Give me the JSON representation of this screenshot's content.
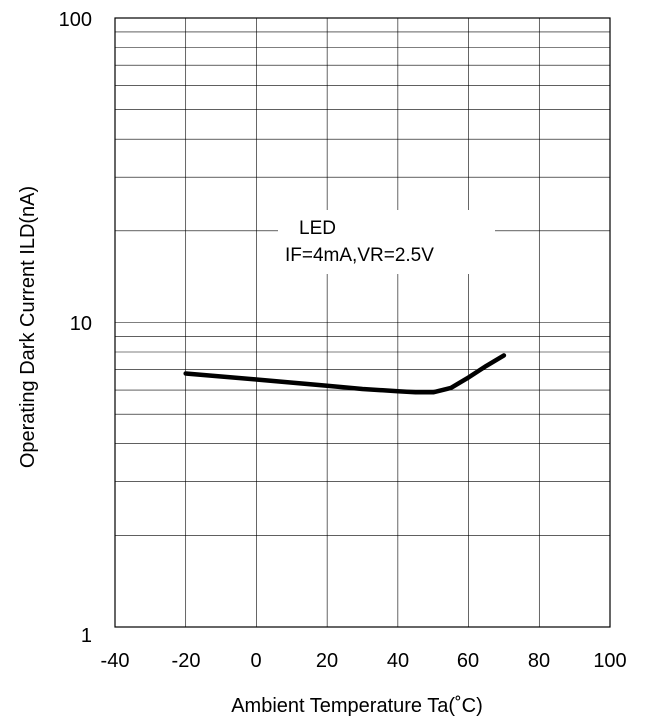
{
  "chart_data": {
    "type": "line",
    "xlabel": "Ambient Temperature Ta(˚C)",
    "ylabel": "Operating Dark Current ILD(nA)",
    "xlim": [
      -40,
      100
    ],
    "ylim": [
      1,
      100
    ],
    "yscale": "log",
    "grid": true,
    "x_ticks": [
      "-40",
      "-20",
      "0",
      "20",
      "40",
      "60",
      "80",
      "100"
    ],
    "y_ticks": [
      "1",
      "10",
      "100"
    ],
    "annotation": [
      "LED",
      "IF=4mA,VR=2.5V"
    ],
    "series": [
      {
        "x": [
          -20,
          -10,
          0,
          10,
          20,
          30,
          40,
          45,
          50,
          55,
          60,
          65,
          70
        ],
        "y": [
          6.8,
          6.65,
          6.5,
          6.35,
          6.2,
          6.05,
          5.95,
          5.9,
          5.9,
          6.1,
          6.6,
          7.2,
          7.8
        ]
      }
    ],
    "line_color": "#000000"
  }
}
